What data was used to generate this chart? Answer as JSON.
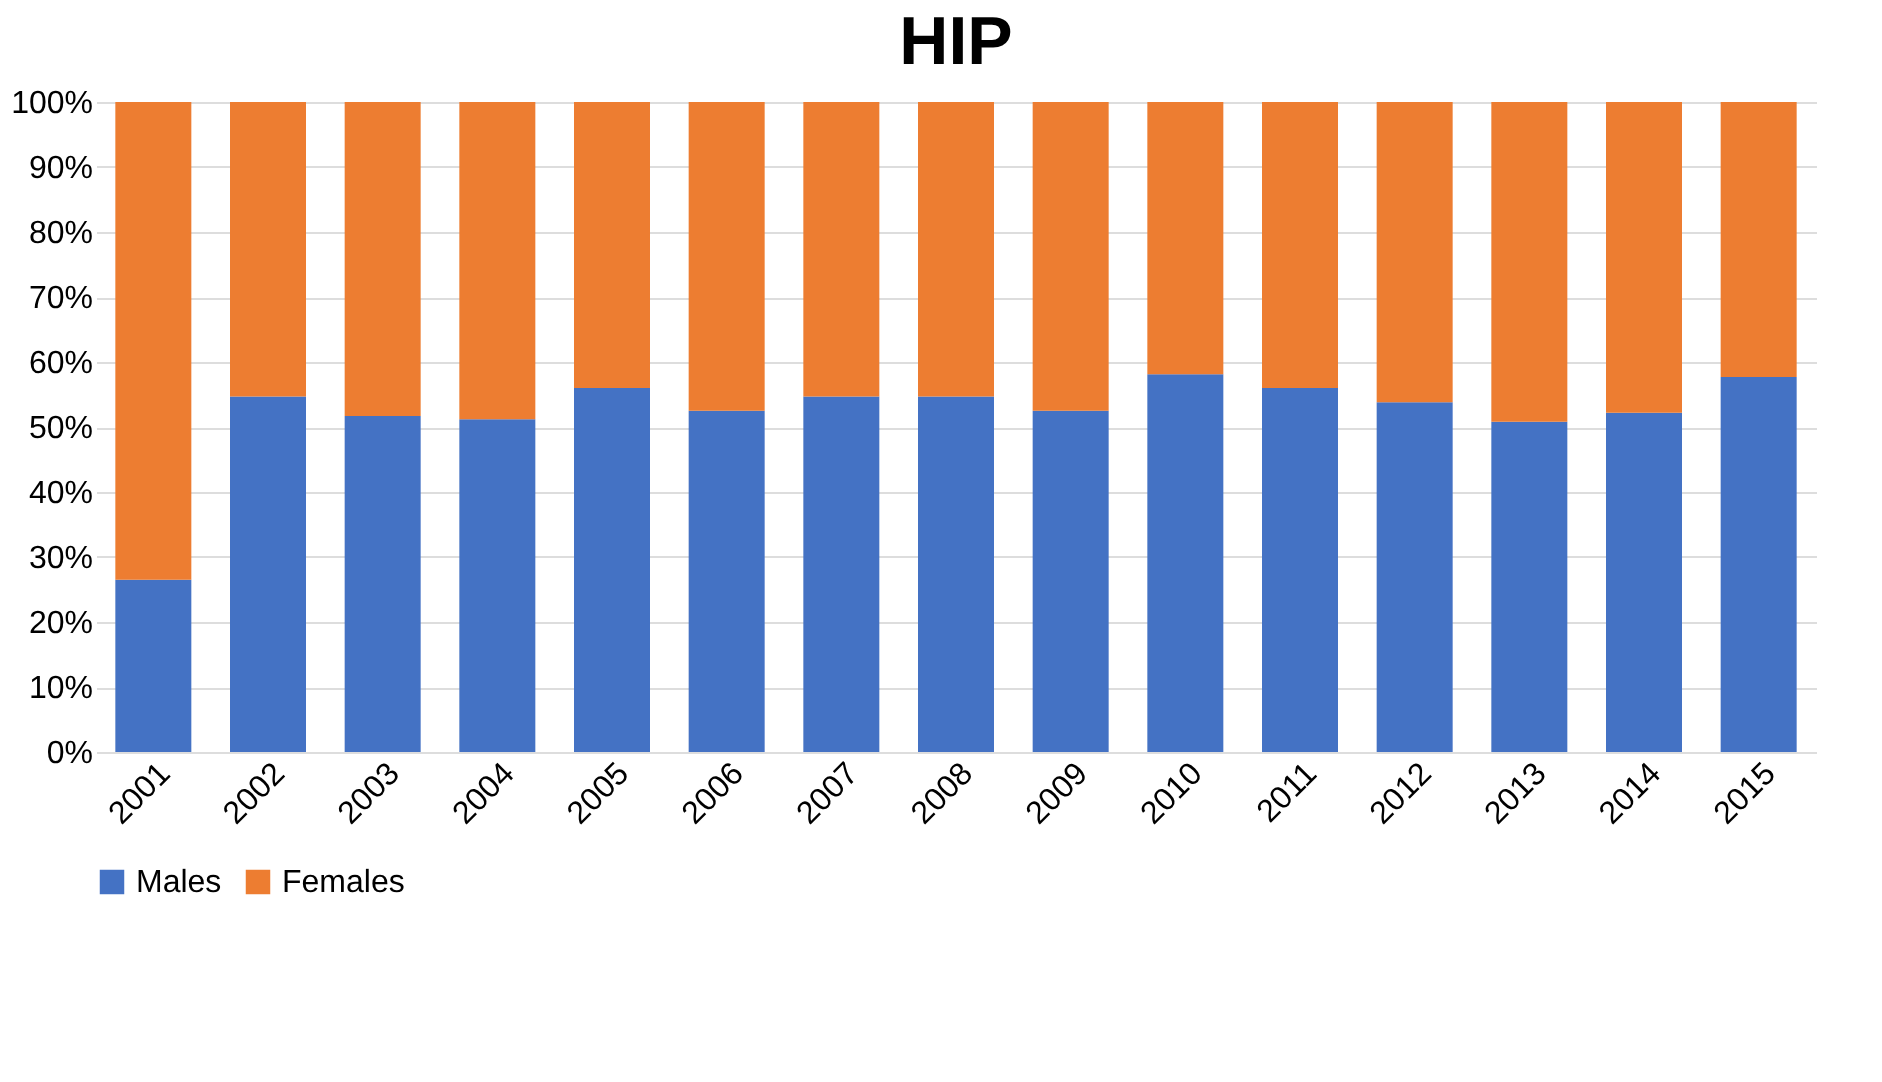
{
  "chart_data": {
    "type": "bar",
    "title": "HIP",
    "stacked": true,
    "categories": [
      "2001",
      "2002",
      "2003",
      "2004",
      "2005",
      "2006",
      "2007",
      "2008",
      "2009",
      "2010",
      "2011",
      "2012",
      "2013",
      "2014",
      "2015"
    ],
    "series": [
      {
        "name": "Males",
        "color": "#4472c4",
        "values": [
          26.5,
          54.7,
          51.7,
          51.2,
          56,
          52.5,
          54.7,
          54.7,
          52.5,
          58.1,
          56,
          53.8,
          50.8,
          52.2,
          57.7
        ]
      },
      {
        "name": "Females",
        "color": "#ed7d31",
        "values": [
          73.5,
          45.3,
          48.3,
          48.8,
          44,
          47.5,
          45.3,
          45.3,
          47.5,
          41.9,
          44,
          46.2,
          49.2,
          47.8,
          42.3
        ]
      }
    ],
    "ylim": [
      0,
      100
    ],
    "yticks": [
      {
        "value": 0,
        "label": "0%"
      },
      {
        "value": 10,
        "label": "10%"
      },
      {
        "value": 20,
        "label": "20%"
      },
      {
        "value": 30,
        "label": "30%"
      },
      {
        "value": 40,
        "label": "40%"
      },
      {
        "value": 50,
        "label": "50%"
      },
      {
        "value": 60,
        "label": "60%"
      },
      {
        "value": 70,
        "label": "70%"
      },
      {
        "value": 80,
        "label": "80%"
      },
      {
        "value": 90,
        "label": "90%"
      },
      {
        "value": 100,
        "label": "100%"
      }
    ],
    "grid": "y",
    "legend": "bottom"
  }
}
